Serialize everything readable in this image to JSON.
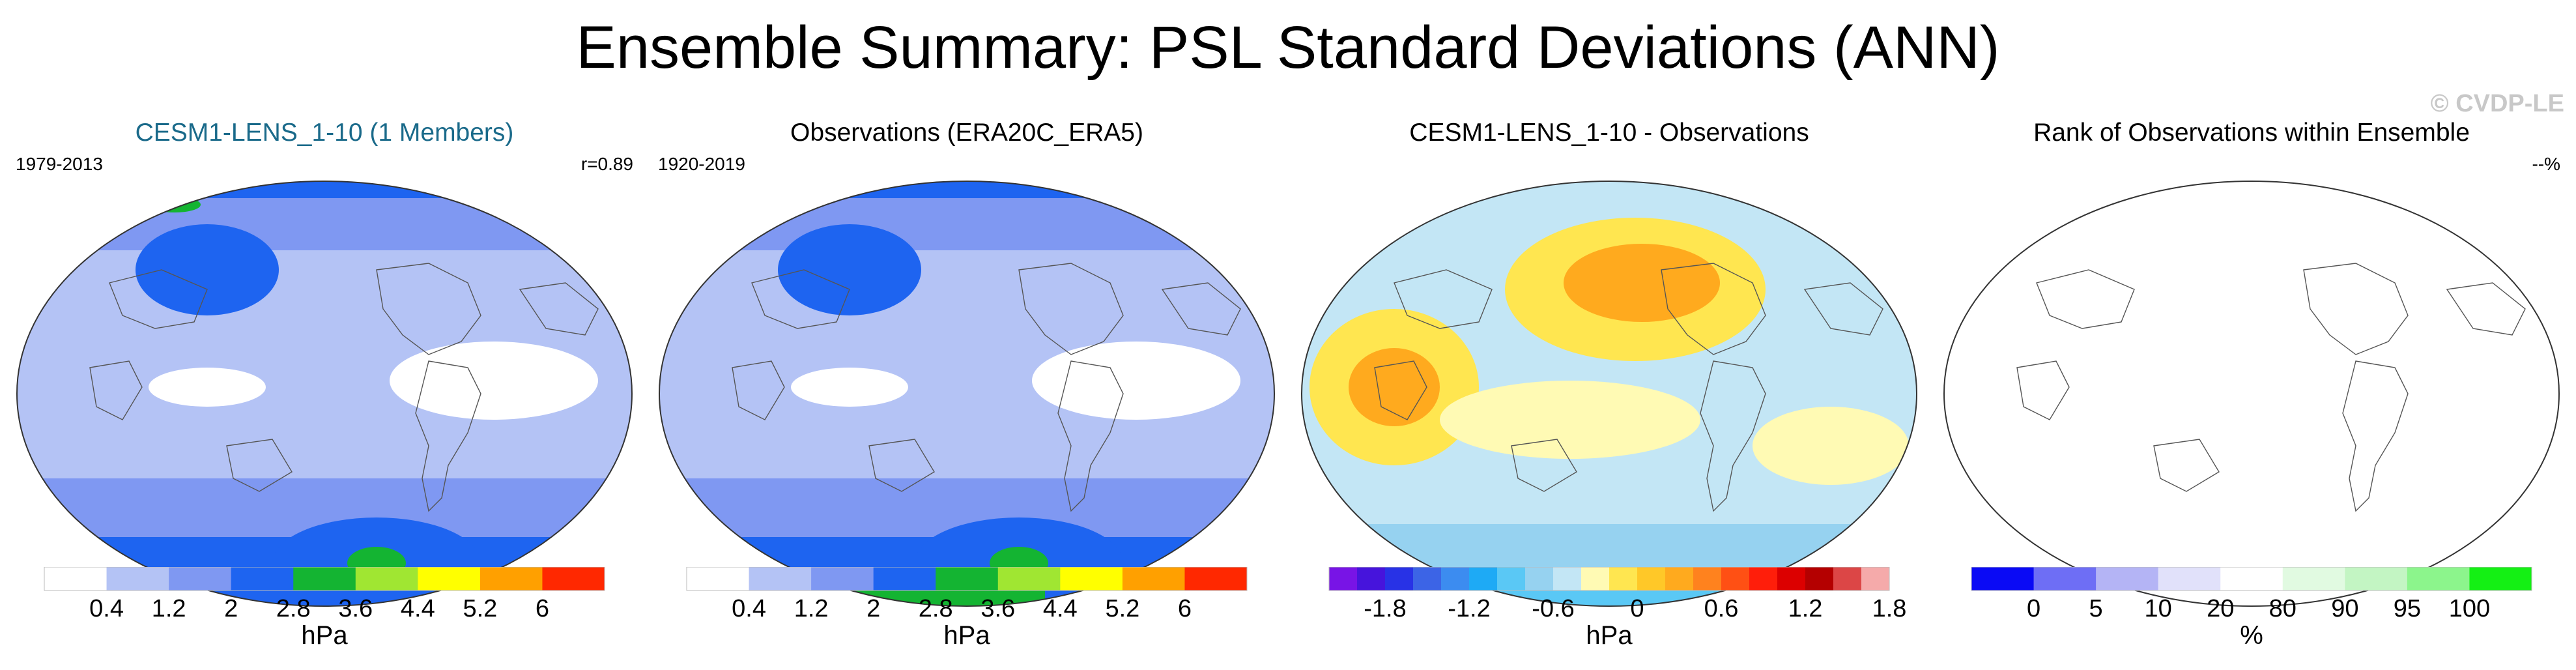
{
  "title": "Ensemble Summary: PSL Standard Deviations (ANN)",
  "watermark": "© CVDP-LE",
  "panels": [
    {
      "title": "CESM1-LENS_1-10 (1 Members)",
      "title_color": "#1a6a8a",
      "left_label": "1979-2013",
      "right_label": "r=0.89",
      "units": "hPa",
      "scale": "sequential",
      "colors": [
        "#ffffff",
        "#b4c3f5",
        "#7f98f2",
        "#1e64f0",
        "#14b432",
        "#a0e632",
        "#ffff00",
        "#ffa000",
        "#ff2800"
      ],
      "tick_labels": [
        "0.4",
        "1.2",
        "2",
        "2.8",
        "3.6",
        "4.4",
        "5.2",
        "6"
      ]
    },
    {
      "title": "Observations (ERA20C_ERA5)",
      "title_color": "#000000",
      "left_label": "1920-2019",
      "right_label": "",
      "units": "hPa",
      "scale": "sequential",
      "colors": [
        "#ffffff",
        "#b4c3f5",
        "#7f98f2",
        "#1e64f0",
        "#14b432",
        "#a0e632",
        "#ffff00",
        "#ffa000",
        "#ff2800"
      ],
      "tick_labels": [
        "0.4",
        "1.2",
        "2",
        "2.8",
        "3.6",
        "4.4",
        "5.2",
        "6"
      ]
    },
    {
      "title": "CESM1-LENS_1-10 - Observations",
      "title_color": "#000000",
      "left_label": "",
      "right_label": "",
      "units": "hPa",
      "scale": "diverging",
      "colors": [
        "#7814e6",
        "#4614dc",
        "#2832e6",
        "#3c64e6",
        "#3c8cf0",
        "#1eaaf5",
        "#5ac8f5",
        "#96d2f0",
        "#c3e6f5",
        "#fffab4",
        "#ffe650",
        "#ffc828",
        "#ffaa1e",
        "#ff821e",
        "#ff5014",
        "#ff1e0a",
        "#dc0000",
        "#b40000",
        "#dc4646",
        "#f5aaaa"
      ],
      "tick_labels": [
        "-1.8",
        "-1.2",
        "-0.6",
        "0",
        "0.6",
        "1.2",
        "1.8"
      ]
    },
    {
      "title": "Rank of Observations within Ensemble",
      "title_color": "#000000",
      "left_label": "",
      "right_label": "--%",
      "units": "%",
      "scale": "rank",
      "colors": [
        "#0a0af5",
        "#6e6ef5",
        "#b4b4f5",
        "#e1e1fa",
        "#ffffff",
        "#e1fae1",
        "#c3f5c3",
        "#8cf58c",
        "#14f014"
      ],
      "tick_labels": [
        "0",
        "5",
        "10",
        "20",
        "80",
        "90",
        "95",
        "100"
      ]
    }
  ]
}
